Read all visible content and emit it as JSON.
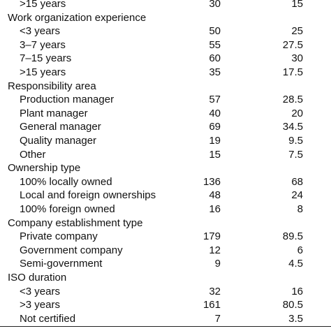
{
  "table": {
    "sections": [
      {
        "rows": [
          [
            ">15 years",
            "30",
            "15"
          ]
        ]
      },
      {
        "title": "Work organization experience",
        "rows": [
          [
            "<3 years",
            "50",
            "25"
          ],
          [
            "3–7 years",
            "55",
            "27.5"
          ],
          [
            "7–15 years",
            "60",
            "30"
          ],
          [
            ">15 years",
            "35",
            "17.5"
          ]
        ]
      },
      {
        "title": "Responsibility area",
        "rows": [
          [
            "Production manager",
            "57",
            "28.5"
          ],
          [
            "Plant manager",
            "40",
            "20"
          ],
          [
            "General manager",
            "69",
            "34.5"
          ],
          [
            "Quality manager",
            "19",
            "9.5"
          ],
          [
            "Other",
            "15",
            "7.5"
          ]
        ]
      },
      {
        "title": "Ownership type",
        "rows": [
          [
            "100% locally owned",
            "136",
            "68"
          ],
          [
            "Local and foreign ownerships",
            "48",
            "24"
          ],
          [
            "100% foreign owned",
            "16",
            "8"
          ]
        ]
      },
      {
        "title": "Company establishment type",
        "rows": [
          [
            "Private company",
            "179",
            "89.5"
          ],
          [
            "Government company",
            "12",
            "6"
          ],
          [
            "Semi-government",
            "9",
            "4.5"
          ]
        ]
      },
      {
        "title": "ISO duration",
        "rows": [
          [
            "<3 years",
            "32",
            "16"
          ],
          [
            ">3 years",
            "161",
            "80.5"
          ],
          [
            "Not certified",
            "7",
            "3.5"
          ]
        ]
      }
    ]
  }
}
